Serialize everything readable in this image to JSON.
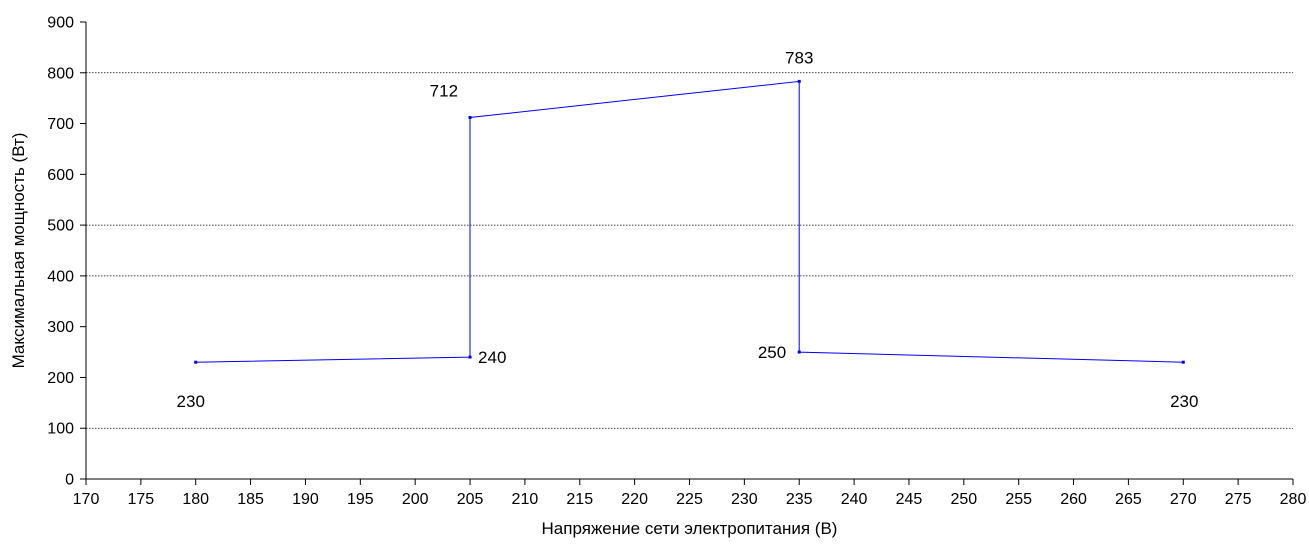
{
  "chart_data": {
    "type": "line",
    "title": "",
    "xlabel": "Напряжение сети электропитания (В)",
    "ylabel": "Максимальная мощность (Вт)",
    "xlim": [
      170,
      280
    ],
    "ylim": [
      0,
      900
    ],
    "x_ticks": [
      "170",
      "175",
      "180",
      "185",
      "190",
      "195",
      "200",
      "205",
      "210",
      "215",
      "220",
      "225",
      "230",
      "235",
      "240",
      "245",
      "250",
      "255",
      "260",
      "265",
      "270",
      "275",
      "280"
    ],
    "y_ticks": [
      "0",
      "100",
      "200",
      "300",
      "400",
      "500",
      "600",
      "700",
      "800",
      "900"
    ],
    "gridlines_y": [
      100,
      400,
      500,
      800
    ],
    "series": [
      {
        "x": [
          180,
          205,
          205,
          235,
          235,
          270
        ],
        "y": [
          230,
          240,
          712,
          783,
          250,
          230
        ],
        "labels": [
          "230",
          "240",
          "712",
          "783",
          "250",
          "230"
        ],
        "color": "#0000ff"
      }
    ],
    "grid": true,
    "legend": "none"
  }
}
